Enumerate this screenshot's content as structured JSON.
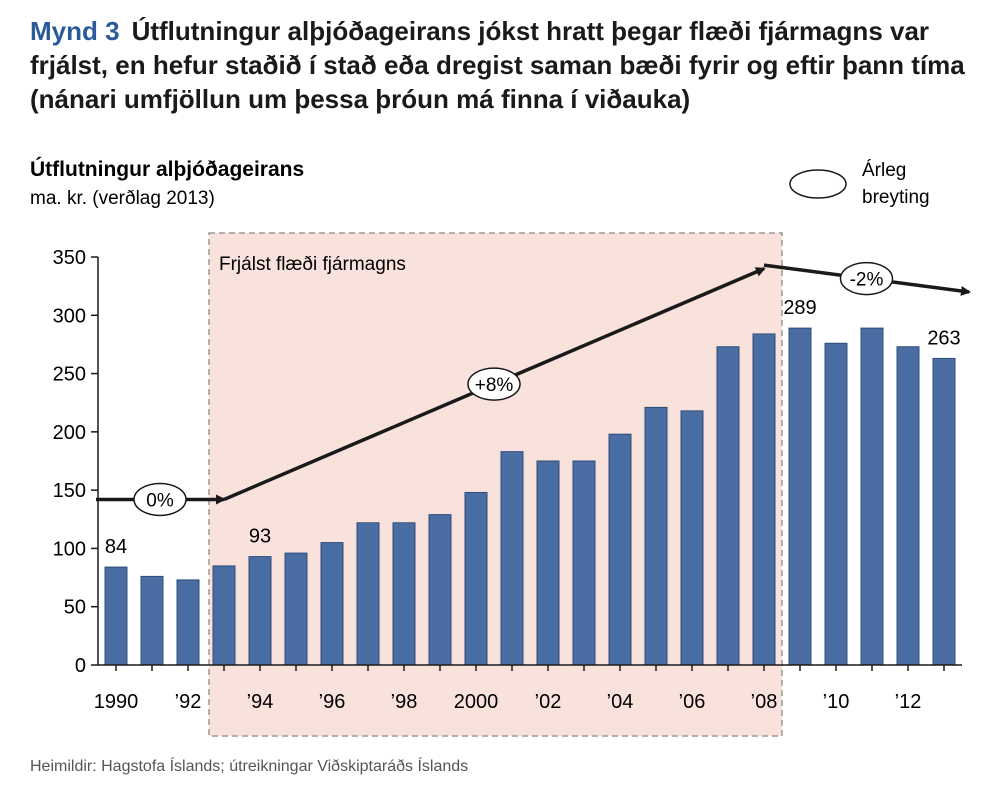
{
  "figure": {
    "number": "Mynd 3",
    "title": "Útflutningur alþjóðageirans jókst hratt þegar flæði fjármagns var frjálst, en hefur staðið í stað eða dregist saman bæði fyrir og eftir þann tíma (nánari umfjöllun um þessa þróun má finna í viðauka)",
    "source": "Heimildir: Hagstofa Íslands; útreikningar Viðskiptaráðs Íslands"
  },
  "colors": {
    "bar": "#4a6ea3",
    "shade": "#f9e1dc",
    "accent": "#2a5a9c",
    "arrow": "#1a1a1a"
  },
  "chart_data": {
    "type": "bar",
    "title": "Útflutningur alþjóðageirans",
    "subtitle": "ma. kr. (verðlag 2013)",
    "categories": [
      "1990",
      "1991",
      "1992",
      "1993",
      "1994",
      "1995",
      "1996",
      "1997",
      "1998",
      "1999",
      "2000",
      "2001",
      "2002",
      "2003",
      "2004",
      "2005",
      "2006",
      "2007",
      "2008",
      "2009",
      "2010",
      "2011",
      "2012",
      "2013"
    ],
    "x_tick_labels": [
      "1990",
      "",
      "’92",
      "",
      "’94",
      "",
      "’96",
      "",
      "’98",
      "",
      "2000",
      "",
      "’02",
      "",
      "’04",
      "",
      "’06",
      "",
      "’08",
      "",
      "’10",
      "",
      "’12",
      ""
    ],
    "values": [
      84,
      76,
      73,
      85,
      93,
      96,
      105,
      122,
      122,
      129,
      148,
      183,
      175,
      175,
      198,
      221,
      218,
      273,
      284,
      289,
      276,
      289,
      273,
      263
    ],
    "data_labels": [
      {
        "year": "1990",
        "text": "84"
      },
      {
        "year": "1994",
        "text": "93"
      },
      {
        "year": "2009",
        "text": "289"
      },
      {
        "year": "2013",
        "text": "263"
      }
    ],
    "ylim": [
      0,
      350
    ],
    "y_ticks": [
      0,
      50,
      100,
      150,
      200,
      250,
      300,
      350
    ],
    "grid": false,
    "shaded_region": {
      "from": "1993",
      "to": "2008",
      "label": "Frjálst flæði fjármagns"
    },
    "trend_arrows": [
      {
        "from_year": "1990",
        "to_year": "1993",
        "from_value": 142,
        "to_value": 142,
        "label": "0%"
      },
      {
        "from_year": "1993",
        "to_year": "2008",
        "from_value": 142,
        "to_value": 340,
        "label": "+8%"
      },
      {
        "from_year": "2008",
        "to_year": "2013",
        "from_value": 343,
        "to_value": 320,
        "label": "-2%"
      }
    ],
    "legend": {
      "label": "Árleg breyting",
      "placement": "top-right"
    }
  }
}
